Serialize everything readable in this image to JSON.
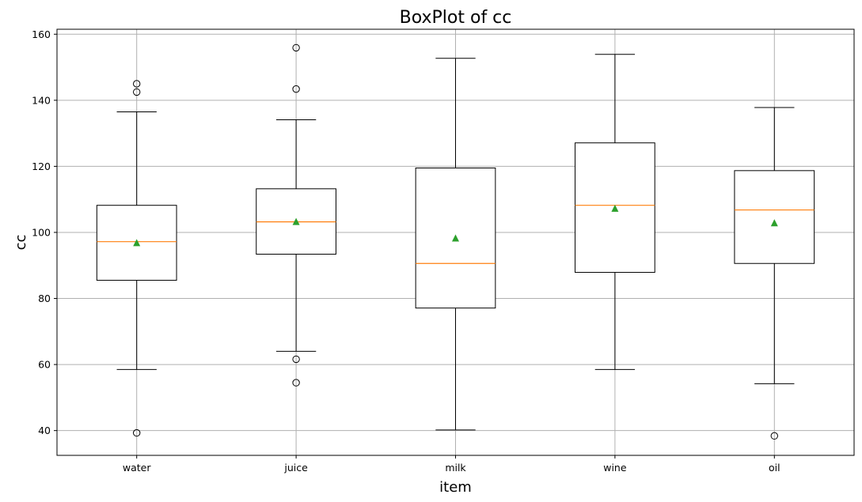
{
  "chart_data": {
    "type": "box",
    "title": "BoxPlot of cc",
    "xlabel": "item",
    "ylabel": "cc",
    "ylim": [
      32.5,
      161.5
    ],
    "yticks": [
      40,
      60,
      80,
      100,
      120,
      140,
      160
    ],
    "grid": true,
    "colors": {
      "box": "#000000",
      "median": "#ff7f0e",
      "mean": "#2ca02c",
      "grid": "#b0b0b0"
    },
    "categories": [
      "water",
      "juice",
      "milk",
      "wine",
      "oil"
    ],
    "boxes": [
      {
        "name": "water",
        "whislo": 58.5,
        "q1": 85.5,
        "med": 97.2,
        "q3": 108.2,
        "whishi": 136.5,
        "mean": 96.8,
        "fliers": [
          145.0,
          142.5,
          39.3
        ]
      },
      {
        "name": "juice",
        "whislo": 64.0,
        "q1": 93.4,
        "med": 103.2,
        "q3": 113.2,
        "whishi": 134.1,
        "mean": 103.2,
        "fliers": [
          155.9,
          143.4,
          61.6,
          54.5
        ]
      },
      {
        "name": "milk",
        "whislo": 40.2,
        "q1": 77.1,
        "med": 90.6,
        "q3": 119.5,
        "whishi": 152.7,
        "mean": 98.2,
        "fliers": []
      },
      {
        "name": "wine",
        "whislo": 58.5,
        "q1": 87.9,
        "med": 108.2,
        "q3": 127.1,
        "whishi": 153.9,
        "mean": 107.2,
        "fliers": []
      },
      {
        "name": "oil",
        "whislo": 54.2,
        "q1": 90.6,
        "med": 106.8,
        "q3": 118.7,
        "whishi": 137.8,
        "mean": 102.8,
        "fliers": [
          38.4
        ]
      }
    ]
  }
}
